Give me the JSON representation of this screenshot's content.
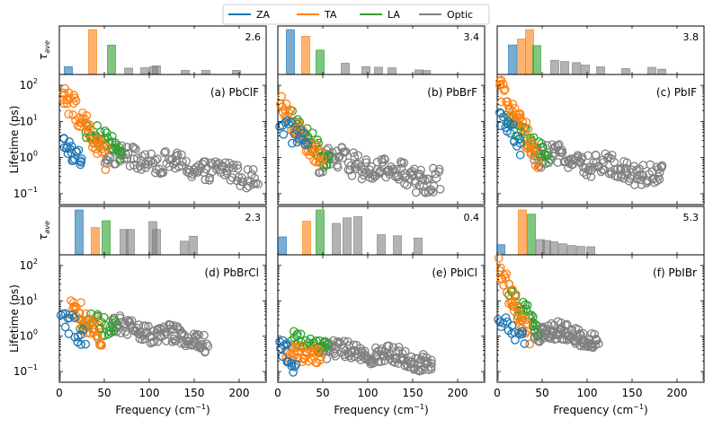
{
  "chart_data": {
    "type": "scatter",
    "layout": "2x3 panel grid, each panel = bar strip (average lifetime per branch group) over a log-scale scatter (phonon lifetime vs frequency)",
    "legend": {
      "position": "top-center",
      "entries": [
        {
          "name": "ZA",
          "color": "#1f77b4"
        },
        {
          "name": "TA",
          "color": "#ff7f0e"
        },
        {
          "name": "LA",
          "color": "#2ca02c"
        },
        {
          "name": "Optic",
          "color": "#808080"
        }
      ]
    },
    "xlabel": "Frequency (cm$^{-1}$)",
    "xlabel_text": "Frequency (cm",
    "xlabel_sup": "−1",
    "xlabel_close": ")",
    "ylabel": "Lifetime (ps)",
    "bar_ylabel_main": "τ",
    "bar_ylabel_sub": "ave",
    "xlim": [
      0,
      230
    ],
    "xticks": [
      0,
      50,
      100,
      150,
      200
    ],
    "ylim_log": [
      0.05,
      200
    ],
    "yticks": [
      {
        "value": 0.1,
        "base": "10",
        "exp": "−1"
      },
      {
        "value": 1,
        "base": "10",
        "exp": "0"
      },
      {
        "value": 10,
        "base": "10",
        "exp": "1"
      },
      {
        "value": 100,
        "base": "10",
        "exp": "2"
      }
    ],
    "panels": [
      {
        "label": "(a) PbClF",
        "max_label": "2.6",
        "bars": [
          {
            "x": 10,
            "value": 0.45,
            "branch": "ZA"
          },
          {
            "x": 37,
            "value": 2.6,
            "branch": "TA"
          },
          {
            "x": 58,
            "value": 1.7,
            "branch": "LA"
          },
          {
            "x": 77,
            "value": 0.37,
            "branch": "Optic"
          },
          {
            "x": 95,
            "value": 0.39,
            "branch": "Optic"
          },
          {
            "x": 105,
            "value": 0.46,
            "branch": "Optic"
          },
          {
            "x": 108,
            "value": 0.5,
            "branch": "Optic"
          },
          {
            "x": 140,
            "value": 0.24,
            "branch": "Optic"
          },
          {
            "x": 163,
            "value": 0.24,
            "branch": "Optic"
          },
          {
            "x": 197,
            "value": 0.24,
            "branch": "Optic"
          }
        ],
        "scatter": {
          "ZA": {
            "x_range": [
              4,
              26
            ],
            "y_start": 2.5,
            "y_end": 0.7,
            "spread": 0.3,
            "n": 20
          },
          "TA": {
            "x_range": [
              3,
              52
            ],
            "y_start": 80,
            "y_end": 0.8,
            "spread": 0.35,
            "n": 46
          },
          "LA": {
            "x_range": [
              28,
              70
            ],
            "y_start": 7,
            "y_end": 1.5,
            "spread": 0.25,
            "n": 34
          },
          "Optic": {
            "x_range": [
              50,
              220
            ],
            "y_start": 1.2,
            "y_end": 0.3,
            "spread": 0.3,
            "n": 130
          }
        }
      },
      {
        "label": "(b) PbBrF",
        "max_label": "3.4",
        "bars": [
          {
            "x": 14,
            "value": 3.4,
            "branch": "ZA"
          },
          {
            "x": 31,
            "value": 2.9,
            "branch": "TA"
          },
          {
            "x": 47,
            "value": 1.85,
            "branch": "LA"
          },
          {
            "x": 75,
            "value": 0.85,
            "branch": "Optic"
          },
          {
            "x": 98,
            "value": 0.6,
            "branch": "Optic"
          },
          {
            "x": 112,
            "value": 0.55,
            "branch": "Optic"
          },
          {
            "x": 127,
            "value": 0.5,
            "branch": "Optic"
          },
          {
            "x": 157,
            "value": 0.35,
            "branch": "Optic"
          },
          {
            "x": 165,
            "value": 0.3,
            "branch": "Optic"
          }
        ],
        "scatter": {
          "ZA": {
            "x_range": [
              3,
              34
            ],
            "y_start": 8,
            "y_end": 2.5,
            "spread": 0.3,
            "n": 18
          },
          "TA": {
            "x_range": [
              2,
              50
            ],
            "y_start": 35,
            "y_end": 0.6,
            "spread": 0.3,
            "n": 40
          },
          "LA": {
            "x_range": [
              15,
              58
            ],
            "y_start": 13,
            "y_end": 0.7,
            "spread": 0.25,
            "n": 32
          },
          "Optic": {
            "x_range": [
              45,
              180
            ],
            "y_start": 1.0,
            "y_end": 0.2,
            "spread": 0.35,
            "n": 120
          }
        }
      },
      {
        "label": "(c) PbIF",
        "max_label": "3.8",
        "bars": [
          {
            "x": 17,
            "value": 2.5,
            "branch": "ZA"
          },
          {
            "x": 27,
            "value": 3.0,
            "branch": "TA"
          },
          {
            "x": 36,
            "value": 3.8,
            "branch": "TA"
          },
          {
            "x": 44,
            "value": 2.45,
            "branch": "LA"
          },
          {
            "x": 64,
            "value": 1.2,
            "branch": "Optic"
          },
          {
            "x": 75,
            "value": 1.1,
            "branch": "Optic"
          },
          {
            "x": 88,
            "value": 1.0,
            "branch": "Optic"
          },
          {
            "x": 98,
            "value": 0.8,
            "branch": "Optic"
          },
          {
            "x": 115,
            "value": 0.65,
            "branch": "Optic"
          },
          {
            "x": 143,
            "value": 0.5,
            "branch": "Optic"
          },
          {
            "x": 172,
            "value": 0.6,
            "branch": "Optic"
          },
          {
            "x": 183,
            "value": 0.45,
            "branch": "Optic"
          }
        ],
        "scatter": {
          "ZA": {
            "x_range": [
              3,
              26
            ],
            "y_start": 14,
            "y_end": 1.8,
            "spread": 0.3,
            "n": 18
          },
          "TA": {
            "x_range": [
              2,
              45
            ],
            "y_start": 90,
            "y_end": 1.0,
            "spread": 0.35,
            "n": 44
          },
          "LA": {
            "x_range": [
              10,
              56
            ],
            "y_start": 12,
            "y_end": 1.0,
            "spread": 0.25,
            "n": 32
          },
          "Optic": {
            "x_range": [
              40,
              185
            ],
            "y_start": 1.3,
            "y_end": 0.3,
            "spread": 0.3,
            "n": 130
          }
        }
      },
      {
        "label": "(d) PbBrCl",
        "max_label": "2.3",
        "bars": [
          {
            "x": 22,
            "value": 2.3,
            "branch": "ZA"
          },
          {
            "x": 40,
            "value": 1.4,
            "branch": "TA"
          },
          {
            "x": 52,
            "value": 1.75,
            "branch": "LA"
          },
          {
            "x": 72,
            "value": 1.3,
            "branch": "Optic"
          },
          {
            "x": 79,
            "value": 1.3,
            "branch": "Optic"
          },
          {
            "x": 104,
            "value": 1.7,
            "branch": "Optic"
          },
          {
            "x": 108,
            "value": 1.3,
            "branch": "Optic"
          },
          {
            "x": 139,
            "value": 0.7,
            "branch": "Optic"
          },
          {
            "x": 149,
            "value": 0.95,
            "branch": "Optic"
          }
        ],
        "scatter": {
          "ZA": {
            "x_range": [
              2,
              28
            ],
            "y_start": 3.0,
            "y_end": 1.0,
            "spread": 0.35,
            "n": 16
          },
          "TA": {
            "x_range": [
              12,
              48
            ],
            "y_start": 8,
            "y_end": 1.0,
            "spread": 0.35,
            "n": 34
          },
          "LA": {
            "x_range": [
              22,
              62
            ],
            "y_start": 3,
            "y_end": 1.5,
            "spread": 0.3,
            "n": 30
          },
          "Optic": {
            "x_range": [
              58,
              165
            ],
            "y_start": 2.0,
            "y_end": 0.7,
            "spread": 0.25,
            "n": 110
          }
        }
      },
      {
        "label": "(e) PbICl",
        "max_label": "0.4",
        "bars": [
          {
            "x": 5,
            "value": 0.16,
            "branch": "ZA"
          },
          {
            "x": 32,
            "value": 0.3,
            "branch": "TA"
          },
          {
            "x": 47,
            "value": 0.4,
            "branch": "LA"
          },
          {
            "x": 65,
            "value": 0.28,
            "branch": "Optic"
          },
          {
            "x": 77,
            "value": 0.33,
            "branch": "Optic"
          },
          {
            "x": 89,
            "value": 0.34,
            "branch": "Optic"
          },
          {
            "x": 115,
            "value": 0.18,
            "branch": "Optic"
          },
          {
            "x": 133,
            "value": 0.17,
            "branch": "Optic"
          },
          {
            "x": 156,
            "value": 0.15,
            "branch": "Optic"
          }
        ],
        "scatter": {
          "ZA": {
            "x_range": [
              2,
              20
            ],
            "y_start": 0.6,
            "y_end": 0.15,
            "spread": 0.3,
            "n": 16
          },
          "TA": {
            "x_range": [
              8,
              48
            ],
            "y_start": 0.35,
            "y_end": 0.3,
            "spread": 0.25,
            "n": 34
          },
          "LA": {
            "x_range": [
              15,
              55
            ],
            "y_start": 1.0,
            "y_end": 0.45,
            "spread": 0.2,
            "n": 28
          },
          "Optic": {
            "x_range": [
              45,
              172
            ],
            "y_start": 0.45,
            "y_end": 0.2,
            "spread": 0.25,
            "n": 130
          }
        }
      },
      {
        "label": "(f) PbIBr",
        "max_label": "5.3",
        "bars": [
          {
            "x": 4,
            "value": 1.2,
            "branch": "ZA"
          },
          {
            "x": 28,
            "value": 5.3,
            "branch": "TA"
          },
          {
            "x": 38,
            "value": 4.8,
            "branch": "LA"
          },
          {
            "x": 48,
            "value": 1.8,
            "branch": "Optic"
          },
          {
            "x": 55,
            "value": 1.7,
            "branch": "Optic"
          },
          {
            "x": 63,
            "value": 1.55,
            "branch": "Optic"
          },
          {
            "x": 73,
            "value": 1.3,
            "branch": "Optic"
          },
          {
            "x": 83,
            "value": 1.1,
            "branch": "Optic"
          },
          {
            "x": 93,
            "value": 1.0,
            "branch": "Optic"
          },
          {
            "x": 104,
            "value": 0.95,
            "branch": "Optic"
          }
        ],
        "scatter": {
          "ZA": {
            "x_range": [
              2,
              30
            ],
            "y_start": 3.0,
            "y_end": 0.8,
            "spread": 0.3,
            "n": 16
          },
          "TA": {
            "x_range": [
              2,
              35
            ],
            "y_start": 80,
            "y_end": 1.0,
            "spread": 0.35,
            "n": 34
          },
          "LA": {
            "x_range": [
              14,
              45
            ],
            "y_start": 12,
            "y_end": 2.0,
            "spread": 0.3,
            "n": 26
          },
          "Optic": {
            "x_range": [
              40,
              112
            ],
            "y_start": 1.5,
            "y_end": 0.9,
            "spread": 0.25,
            "n": 100
          }
        }
      }
    ]
  }
}
